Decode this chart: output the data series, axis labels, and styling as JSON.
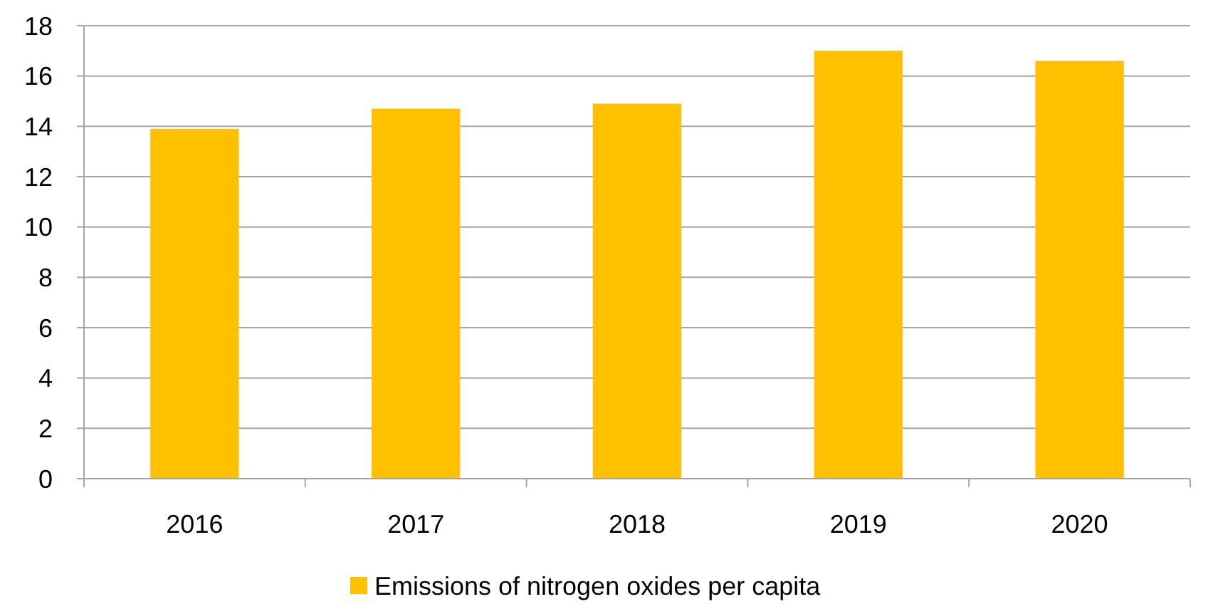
{
  "chart_data": {
    "type": "bar",
    "categories": [
      "2016",
      "2017",
      "2018",
      "2019",
      "2020"
    ],
    "series": [
      {
        "name": "Emissions of nitrogen oxides per capita",
        "color": "#ffc000",
        "values": [
          13.9,
          14.7,
          14.9,
          17.0,
          16.6
        ]
      }
    ],
    "ylim": [
      0,
      18
    ],
    "yticks": [
      0,
      2,
      4,
      6,
      8,
      10,
      12,
      14,
      16,
      18
    ],
    "grid": "y",
    "legend": "bottom"
  }
}
